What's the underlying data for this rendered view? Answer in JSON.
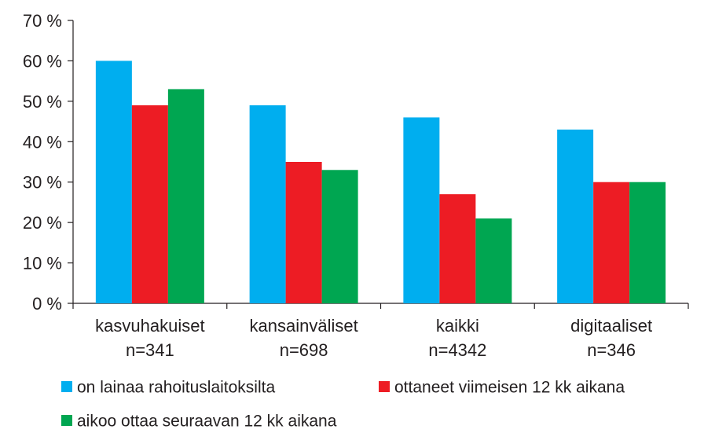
{
  "chart_data": {
    "type": "bar",
    "categories": [
      {
        "name": "kasvuhakuiset",
        "n": "n=341"
      },
      {
        "name": "kansainväliset",
        "n": "n=698"
      },
      {
        "name": "kaikki",
        "n": "n=4342"
      },
      {
        "name": "digitaaliset",
        "n": "n=346"
      }
    ],
    "series": [
      {
        "name": "on lainaa rahoituslaitoksilta",
        "color": "#00aeef",
        "values": [
          60,
          49,
          46,
          43
        ]
      },
      {
        "name": "ottaneet viimeisen 12 kk aikana",
        "color": "#ed1c24",
        "values": [
          49,
          35,
          27,
          30
        ]
      },
      {
        "name": "aikoo ottaa seuraavan 12 kk aikana",
        "color": "#00a651",
        "values": [
          53,
          33,
          21,
          30
        ]
      }
    ],
    "yticks": [
      "0 %",
      "10 %",
      "20 %",
      "30 %",
      "40 %",
      "50 %",
      "60 %",
      "70 %"
    ],
    "ylim": [
      0,
      70
    ],
    "title": "",
    "xlabel": "",
    "ylabel": "",
    "grid": false,
    "legend_position": "bottom"
  }
}
